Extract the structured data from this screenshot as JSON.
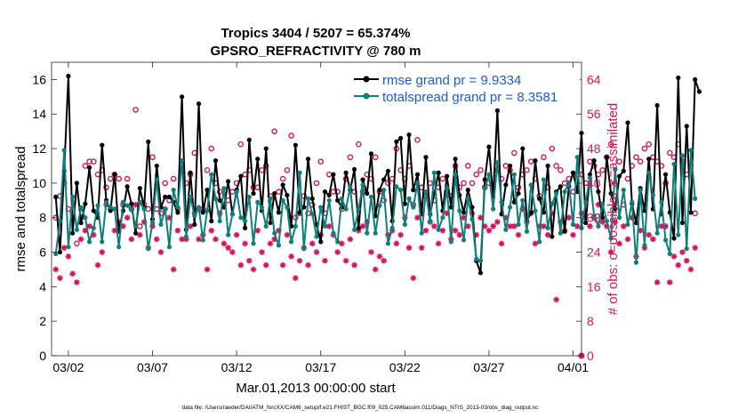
{
  "chart_data": {
    "type": "line",
    "title": "Tropics 3404 / 5207 = 65.374%",
    "subtitle": "GPSRO_REFRACTIVITY @ 780 m",
    "xlabel": "Mar.01,2013 00:00:00 start",
    "ylabel_left": "rmse and totalspread",
    "ylabel_right": "# of obs: o=possible; ∗=assimilated",
    "footnote": "data file: /Users/raeder/DAI/ATM_forcXX/CAM6_setup/f.e21.FHIST_BGC.f09_025.CAM6assim.011/Diags_NTrS_2013-03/obs_diag_output.nc",
    "x_range": [
      0,
      31.5
    ],
    "ylim_left": [
      0,
      17
    ],
    "ylim_right": [
      0,
      68
    ],
    "x_ticks": [
      {
        "pos": 1,
        "label": "03/02"
      },
      {
        "pos": 6,
        "label": "03/07"
      },
      {
        "pos": 11,
        "label": "03/12"
      },
      {
        "pos": 16,
        "label": "03/17"
      },
      {
        "pos": 21,
        "label": "03/22"
      },
      {
        "pos": 26,
        "label": "03/27"
      },
      {
        "pos": 31,
        "label": "04/01"
      }
    ],
    "y_ticks_left": [
      "0",
      "2",
      "4",
      "6",
      "8",
      "10",
      "12",
      "14",
      "16"
    ],
    "y_ticks_right": [
      "0",
      "8",
      "16",
      "24",
      "32",
      "40",
      "48",
      "56",
      "64"
    ],
    "legend": [
      {
        "name": "rmse grand pr = 9.9334",
        "color": "#000000"
      },
      {
        "name": "totalspread grand pr = 8.3581",
        "color": "#0e7f7f"
      }
    ],
    "colors": {
      "rmse": "#000000",
      "spread": "#0e7f7f",
      "obs": "#d6145a"
    },
    "series": [
      {
        "name": "rmse",
        "x_start": 0.25,
        "x_step": 0.25,
        "values": [
          9.2,
          6.0,
          10.7,
          16.2,
          7.1,
          10.0,
          7.7,
          8.8,
          10.9,
          8.4,
          8.0,
          12.2,
          9.0,
          8.4,
          10.5,
          7.2,
          8.4,
          9.8,
          8.8,
          7.1,
          9.7,
          8.6,
          12.4,
          7.9,
          11.0,
          8.6,
          9.2,
          9.2,
          8.9,
          8.3,
          15.0,
          7.3,
          10.6,
          7.6,
          14.6,
          8.3,
          9.6,
          7.8,
          11.3,
          9.0,
          8.6,
          10.1,
          8.2,
          9.6,
          10.4,
          7.4,
          12.5,
          9.4,
          11.4,
          8.4,
          12.0,
          7.7,
          9.4,
          8.3,
          9.9,
          9.3,
          7.5,
          12.2,
          8.3,
          8.6,
          11.4,
          9.1,
          7.6,
          6.6,
          9.5,
          9.3,
          10.5,
          9.0,
          8.6,
          10.6,
          9.6,
          10.8,
          7.4,
          10.2,
          9.4,
          11.7,
          8.1,
          9.6,
          10.2,
          10.7,
          7.8,
          12.4,
          12.6,
          8.8,
          12.8,
          9.6,
          10.5,
          8.2,
          11.5,
          8.2,
          9.4,
          10.6,
          8.4,
          10.4,
          8.6,
          11.4,
          9.3,
          8.3,
          9.6,
          8.6,
          5.5,
          4.8,
          10.2,
          12.1,
          9.2,
          14.2,
          8.2,
          9.9,
          11.0,
          8.9,
          9.4,
          12.0,
          7.8,
          8.3,
          11.3,
          9.1,
          8.3,
          11.0,
          6.9,
          9.5,
          9.8,
          7.2,
          9.8,
          10.6,
          9.5,
          12.9,
          7.7,
          10.5,
          11.3,
          9.5,
          8.0,
          11.5,
          9.4,
          8.5,
          10.4,
          10.7,
          13.5,
          8.8,
          7.7,
          9.7,
          8.4,
          11.4,
          8.5,
          14.5,
          8.2,
          10.5,
          8.3,
          6.8,
          16.1,
          7.7,
          13.3,
          8.3,
          16.0,
          15.3
        ]
      },
      {
        "name": "totalspread",
        "x_start": 0.25,
        "x_step": 0.25,
        "values": [
          5.9,
          7.8,
          11.9,
          6.3,
          9.2,
          7.3,
          8.6,
          8.0,
          6.6,
          7.4,
          8.7,
          6.6,
          8.9,
          8.6,
          8.5,
          6.3,
          8.9,
          8.7,
          8.5,
          7.5,
          8.9,
          8.5,
          6.2,
          7.7,
          10.2,
          7.6,
          8.5,
          6.3,
          9.6,
          8.6,
          11.3,
          6.9,
          9.2,
          8.1,
          8.6,
          6.7,
          8.4,
          10.5,
          9.1,
          7.8,
          9.7,
          7.0,
          8.2,
          9.5,
          8.0,
          7.8,
          9.2,
          6.5,
          8.9,
          8.6,
          7.5,
          9.1,
          7.1,
          6.4,
          9.0,
          8.6,
          6.6,
          7.5,
          10.6,
          6.2,
          9.1,
          8.2,
          6.9,
          8.6,
          7.5,
          9.0,
          7.1,
          6.6,
          9.1,
          8.5,
          9.8,
          7.3,
          8.5,
          9.9,
          7.1,
          9.2,
          7.1,
          8.7,
          9.6,
          6.5,
          7.4,
          9.8,
          9.6,
          7.6,
          9.1,
          8.6,
          10.0,
          7.1,
          9.5,
          7.8,
          10.6,
          7.3,
          8.0,
          9.7,
          6.6,
          10.5,
          8.4,
          6.7,
          9.1,
          7.9,
          5.6,
          5.5,
          9.7,
          10.5,
          8.5,
          11.2,
          8.9,
          7.3,
          8.6,
          10.5,
          7.6,
          9.0,
          7.2,
          9.9,
          8.4,
          6.6,
          10.2,
          7.4,
          8.8,
          9.4,
          7.1,
          9.5,
          10.0,
          7.6,
          11.5,
          7.4,
          8.9,
          10.3,
          8.1,
          7.5,
          8.8,
          7.8,
          6.8,
          10.8,
          8.0,
          9.6,
          7.6,
          8.9,
          5.4,
          9.6,
          6.4,
          10.6,
          9.3,
          7.1,
          8.9,
          6.7,
          5.9,
          11.1,
          7.0,
          11.6,
          6.2,
          11.9,
          9.1
        ]
      },
      {
        "name": "obs_possible",
        "x_start": 0.25,
        "x_step": 0.25,
        "values": [
          32,
          37,
          40,
          34,
          33,
          26,
          32,
          44,
          45,
          45,
          42,
          43,
          39,
          41,
          42,
          41,
          35,
          41,
          34,
          57,
          30,
          35,
          34,
          46,
          34,
          33,
          40,
          36,
          41,
          34,
          43,
          40,
          42,
          47,
          34,
          34,
          43,
          48,
          40,
          38,
          35,
          36,
          38,
          40,
          49,
          42,
          43,
          39,
          39,
          43,
          44,
          37,
          52,
          38,
          41,
          43,
          51,
          32,
          33,
          37,
          33,
          35,
          40,
          45,
          33,
          42,
          38,
          38,
          34,
          41,
          46,
          38,
          49,
          38,
          42,
          41,
          46,
          38,
          36,
          40,
          41,
          48,
          43,
          41,
          44,
          35,
          50,
          39,
          37,
          40,
          36,
          39,
          41,
          38,
          37,
          44,
          39,
          40,
          44,
          40,
          42,
          43,
          39,
          40,
          39,
          43,
          41,
          44,
          43,
          47,
          39,
          42,
          43,
          45,
          41,
          37,
          46,
          39,
          48,
          44,
          43,
          40,
          41,
          38,
          42,
          42,
          40,
          45,
          44,
          42,
          43,
          46,
          49,
          37,
          45,
          35,
          41,
          44,
          46,
          45,
          48,
          49,
          46,
          45,
          44,
          40,
          47,
          46,
          49,
          45,
          42,
          44,
          33
        ]
      },
      {
        "name": "obs_assimilated",
        "x_start": 0.25,
        "x_step": 0.25,
        "values": [
          20,
          18,
          25,
          23,
          19,
          17,
          27,
          29,
          30,
          28,
          21,
          24,
          35,
          34,
          29,
          31,
          30,
          32,
          27,
          35,
          28,
          31,
          25,
          30,
          27,
          24,
          34,
          32,
          20,
          29,
          27,
          27,
          30,
          33,
          27,
          28,
          20,
          29,
          27,
          33,
          26,
          25,
          24,
          28,
          21,
          26,
          22,
          20,
          29,
          24,
          21,
          26,
          27,
          29,
          21,
          28,
          23,
          18,
          22,
          25,
          21,
          26,
          24,
          28,
          22,
          30,
          28,
          24,
          26,
          22,
          27,
          21,
          29,
          30,
          31,
          24,
          20,
          23,
          22,
          28,
          29,
          26,
          28,
          32,
          25,
          18,
          32,
          25,
          29,
          31,
          30,
          26,
          29,
          33,
          27,
          29,
          28,
          32,
          30,
          33,
          28,
          32,
          30,
          29,
          30,
          31,
          26,
          32,
          30,
          30,
          28,
          34,
          31,
          33,
          26,
          30,
          30,
          28,
          33,
          13,
          31,
          29,
          32,
          28,
          30,
          33,
          32,
          30,
          32,
          35,
          31,
          30,
          24,
          31,
          26,
          30,
          27,
          32,
          23,
          29,
          25,
          28,
          27,
          17,
          30,
          30,
          17,
          23,
          21,
          24,
          22,
          20,
          25
        ]
      }
    ]
  }
}
